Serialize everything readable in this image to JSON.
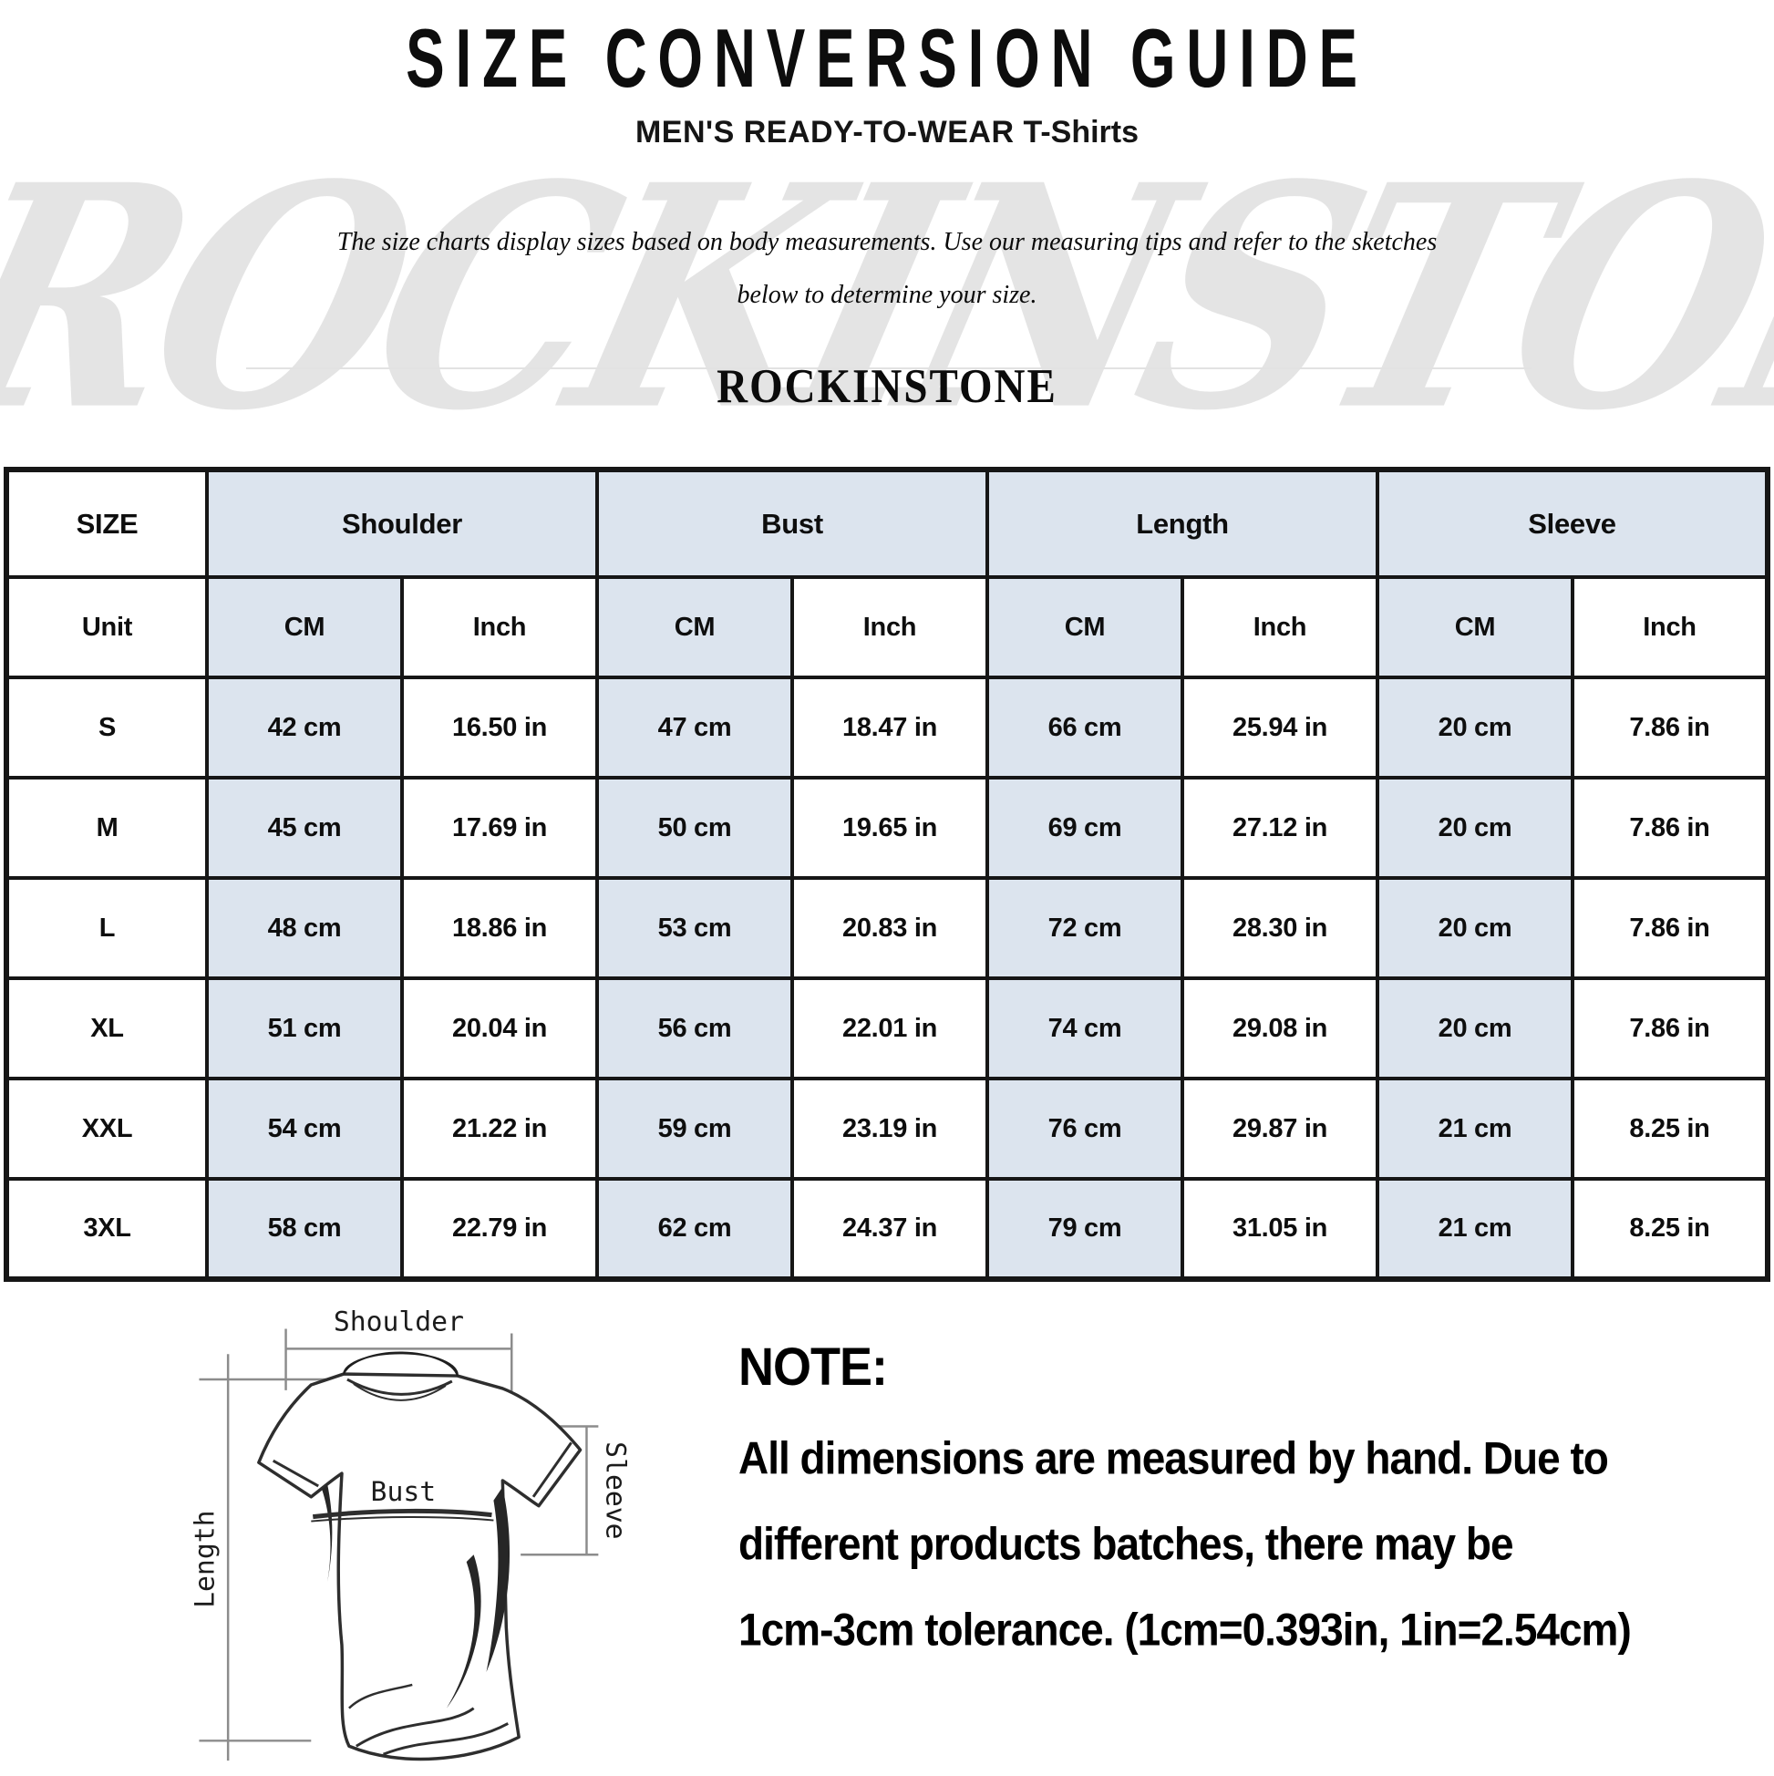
{
  "page": {
    "title": "SIZE CONVERSION GUIDE",
    "subtitle_bold": "MEN'S READY-TO-WEAR",
    "subtitle_product": "T-Shirts",
    "tips_line1": "The size charts display sizes based on body measurements. Use our measuring tips and refer to the sketches",
    "tips_line2": "below to determine your size.",
    "brand": "ROCKINSTONE",
    "watermark": "ROCKINSTONE"
  },
  "table": {
    "header": {
      "size_label": "SIZE",
      "groups": [
        "Shoulder",
        "Bust",
        "Length",
        "Sleeve"
      ]
    },
    "unit_row": {
      "label": "Unit",
      "units": [
        "CM",
        "Inch",
        "CM",
        "Inch",
        "CM",
        "Inch",
        "CM",
        "Inch"
      ]
    },
    "rows": [
      {
        "size": "S",
        "values": [
          "42 cm",
          "16.50 in",
          "47 cm",
          "18.47 in",
          "66 cm",
          "25.94 in",
          "20 cm",
          "7.86 in"
        ]
      },
      {
        "size": "M",
        "values": [
          "45 cm",
          "17.69 in",
          "50 cm",
          "19.65 in",
          "69 cm",
          "27.12 in",
          "20 cm",
          "7.86 in"
        ]
      },
      {
        "size": "L",
        "values": [
          "48 cm",
          "18.86 in",
          "53 cm",
          "20.83 in",
          "72 cm",
          "28.30 in",
          "20 cm",
          "7.86 in"
        ]
      },
      {
        "size": "XL",
        "values": [
          "51 cm",
          "20.04 in",
          "56 cm",
          "22.01 in",
          "74 cm",
          "29.08 in",
          "20 cm",
          "7.86 in"
        ]
      },
      {
        "size": "XXL",
        "values": [
          "54 cm",
          "21.22 in",
          "59 cm",
          "23.19 in",
          "76 cm",
          "29.87 in",
          "21 cm",
          "8.25 in"
        ]
      },
      {
        "size": "3XL",
        "values": [
          "58 cm",
          "22.79 in",
          "62 cm",
          "24.37 in",
          "79 cm",
          "31.05 in",
          "21 cm",
          "8.25 in"
        ]
      }
    ]
  },
  "sketch": {
    "labels": {
      "shoulder": "Shoulder",
      "bust": "Bust",
      "length": "Length",
      "sleeve": "Sleeve"
    }
  },
  "note": {
    "heading": "NOTE:",
    "line1": "All dimensions are measured by hand. Due to",
    "line2": "different products batches, there may be",
    "line3": "1cm-3cm tolerance. (1cm=0.393in, 1in=2.54cm)"
  },
  "colors": {
    "cell_blue": "#dce4ee",
    "table_border": "#161616",
    "watermark_gray": "#e4e4e4"
  }
}
